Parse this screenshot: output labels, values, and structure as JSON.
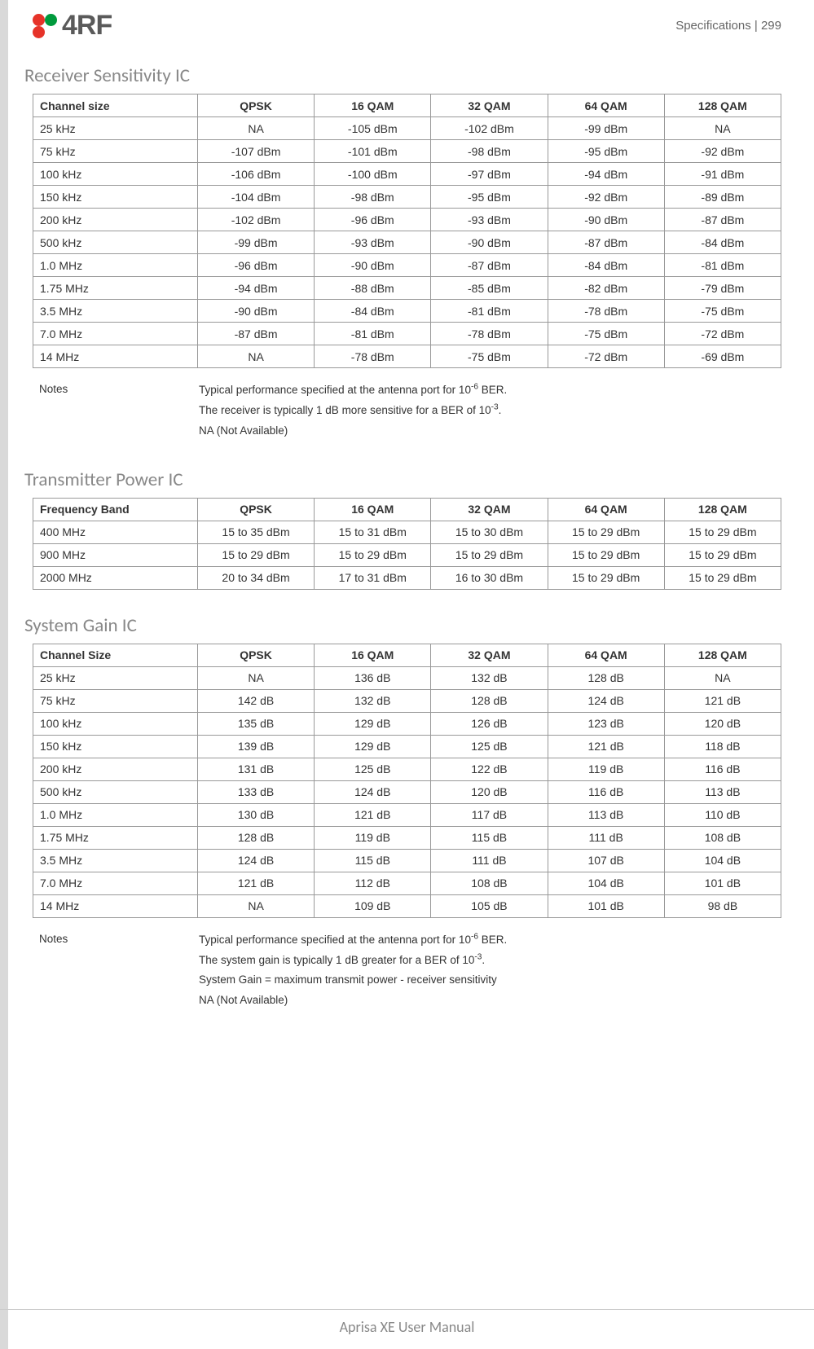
{
  "page": {
    "header_ref": "Specifications  |  299",
    "footer": "Aprisa XE User Manual",
    "logo_text": "4RF",
    "logo_colors": [
      "#e63329",
      "#009a3d",
      "#e63329",
      "#ffffff"
    ]
  },
  "sections": {
    "receiver": {
      "title": "Receiver Sensitivity IC",
      "columns": [
        "Channel size",
        "QPSK",
        "16 QAM",
        "32 QAM",
        "64 QAM",
        "128 QAM"
      ],
      "rows": [
        [
          "25 kHz",
          "NA",
          "-105 dBm",
          "-102 dBm",
          "-99 dBm",
          "NA"
        ],
        [
          "75 kHz",
          "-107 dBm",
          "-101 dBm",
          "-98 dBm",
          "-95 dBm",
          "-92 dBm"
        ],
        [
          "100 kHz",
          "-106 dBm",
          "-100 dBm",
          "-97 dBm",
          "-94 dBm",
          "-91 dBm"
        ],
        [
          "150 kHz",
          "-104 dBm",
          "-98 dBm",
          "-95 dBm",
          "-92 dBm",
          "-89 dBm"
        ],
        [
          "200 kHz",
          "-102 dBm",
          "-96 dBm",
          "-93 dBm",
          "-90 dBm",
          "-87 dBm"
        ],
        [
          "500 kHz",
          "-99 dBm",
          "-93 dBm",
          "-90 dBm",
          "-87 dBm",
          "-84 dBm"
        ],
        [
          "1.0 MHz",
          "-96 dBm",
          "-90 dBm",
          "-87 dBm",
          "-84 dBm",
          "-81 dBm"
        ],
        [
          "1.75 MHz",
          "-94 dBm",
          "-88 dBm",
          "-85 dBm",
          "-82 dBm",
          "-79 dBm"
        ],
        [
          "3.5 MHz",
          "-90 dBm",
          "-84 dBm",
          "-81 dBm",
          "-78 dBm",
          "-75 dBm"
        ],
        [
          "7.0 MHz",
          "-87 dBm",
          "-81 dBm",
          "-78 dBm",
          "-75 dBm",
          "-72 dBm"
        ],
        [
          "14 MHz",
          "NA",
          "-78 dBm",
          "-75 dBm",
          "-72 dBm",
          "-69 dBm"
        ]
      ],
      "notes_label": "Notes",
      "notes": [
        "Typical performance specified at the antenna port for 10<sup>-6</sup> BER.",
        "The receiver is typically 1 dB more sensitive for a BER of 10<sup>-3</sup>.",
        "NA (Not Available)"
      ]
    },
    "transmitter": {
      "title": "Transmitter Power IC",
      "columns": [
        "Frequency Band",
        "QPSK",
        "16 QAM",
        "32 QAM",
        "64 QAM",
        "128 QAM"
      ],
      "rows": [
        [
          "400 MHz",
          "15 to 35 dBm",
          "15 to 31 dBm",
          "15 to 30 dBm",
          "15 to 29 dBm",
          "15 to 29 dBm"
        ],
        [
          "900 MHz",
          "15 to 29 dBm",
          "15 to 29 dBm",
          "15 to 29 dBm",
          "15 to 29 dBm",
          "15 to 29 dBm"
        ],
        [
          "2000 MHz",
          "20 to 34 dBm",
          "17 to 31 dBm",
          "16 to 30 dBm",
          "15 to 29 dBm",
          "15 to 29 dBm"
        ]
      ]
    },
    "gain": {
      "title": "System Gain IC",
      "columns": [
        "Channel Size",
        "QPSK",
        "16 QAM",
        "32 QAM",
        "64 QAM",
        "128 QAM"
      ],
      "rows": [
        [
          "25 kHz",
          "NA",
          "136 dB",
          "132 dB",
          "128 dB",
          "NA"
        ],
        [
          "75 kHz",
          "142 dB",
          "132 dB",
          "128 dB",
          "124 dB",
          "121 dB"
        ],
        [
          "100 kHz",
          "135 dB",
          "129 dB",
          "126 dB",
          "123 dB",
          "120 dB"
        ],
        [
          "150 kHz",
          "139 dB",
          "129 dB",
          "125 dB",
          "121 dB",
          "118 dB"
        ],
        [
          "200 kHz",
          "131 dB",
          "125 dB",
          "122 dB",
          "119 dB",
          "116 dB"
        ],
        [
          "500 kHz",
          "133 dB",
          "124 dB",
          "120 dB",
          "116 dB",
          "113 dB"
        ],
        [
          "1.0 MHz",
          "130 dB",
          "121 dB",
          "117 dB",
          "113 dB",
          "110 dB"
        ],
        [
          "1.75 MHz",
          "128 dB",
          "119 dB",
          "115 dB",
          "111 dB",
          "108 dB"
        ],
        [
          "3.5 MHz",
          "124 dB",
          "115 dB",
          "111 dB",
          "107 dB",
          "104 dB"
        ],
        [
          "7.0 MHz",
          "121 dB",
          "112 dB",
          "108 dB",
          "104 dB",
          "101 dB"
        ],
        [
          "14 MHz",
          "NA",
          "109 dB",
          "105 dB",
          "101 dB",
          "98 dB"
        ]
      ],
      "notes_label": "Notes",
      "notes": [
        "Typical performance specified at the antenna port for 10<sup>-6</sup> BER.",
        "The system gain is typically 1 dB greater for a BER of 10<sup>-3</sup>.",
        "System Gain = maximum transmit power - receiver sensitivity",
        "NA (Not Available)"
      ]
    }
  },
  "styling": {
    "table_border_color": "#999999",
    "section_title_color": "#888888",
    "section_title_fontsize": 23,
    "body_fontsize": 14,
    "notes_fontsize": 13.5,
    "background_color": "#ffffff",
    "text_color": "#333333",
    "footer_color": "#888888"
  }
}
